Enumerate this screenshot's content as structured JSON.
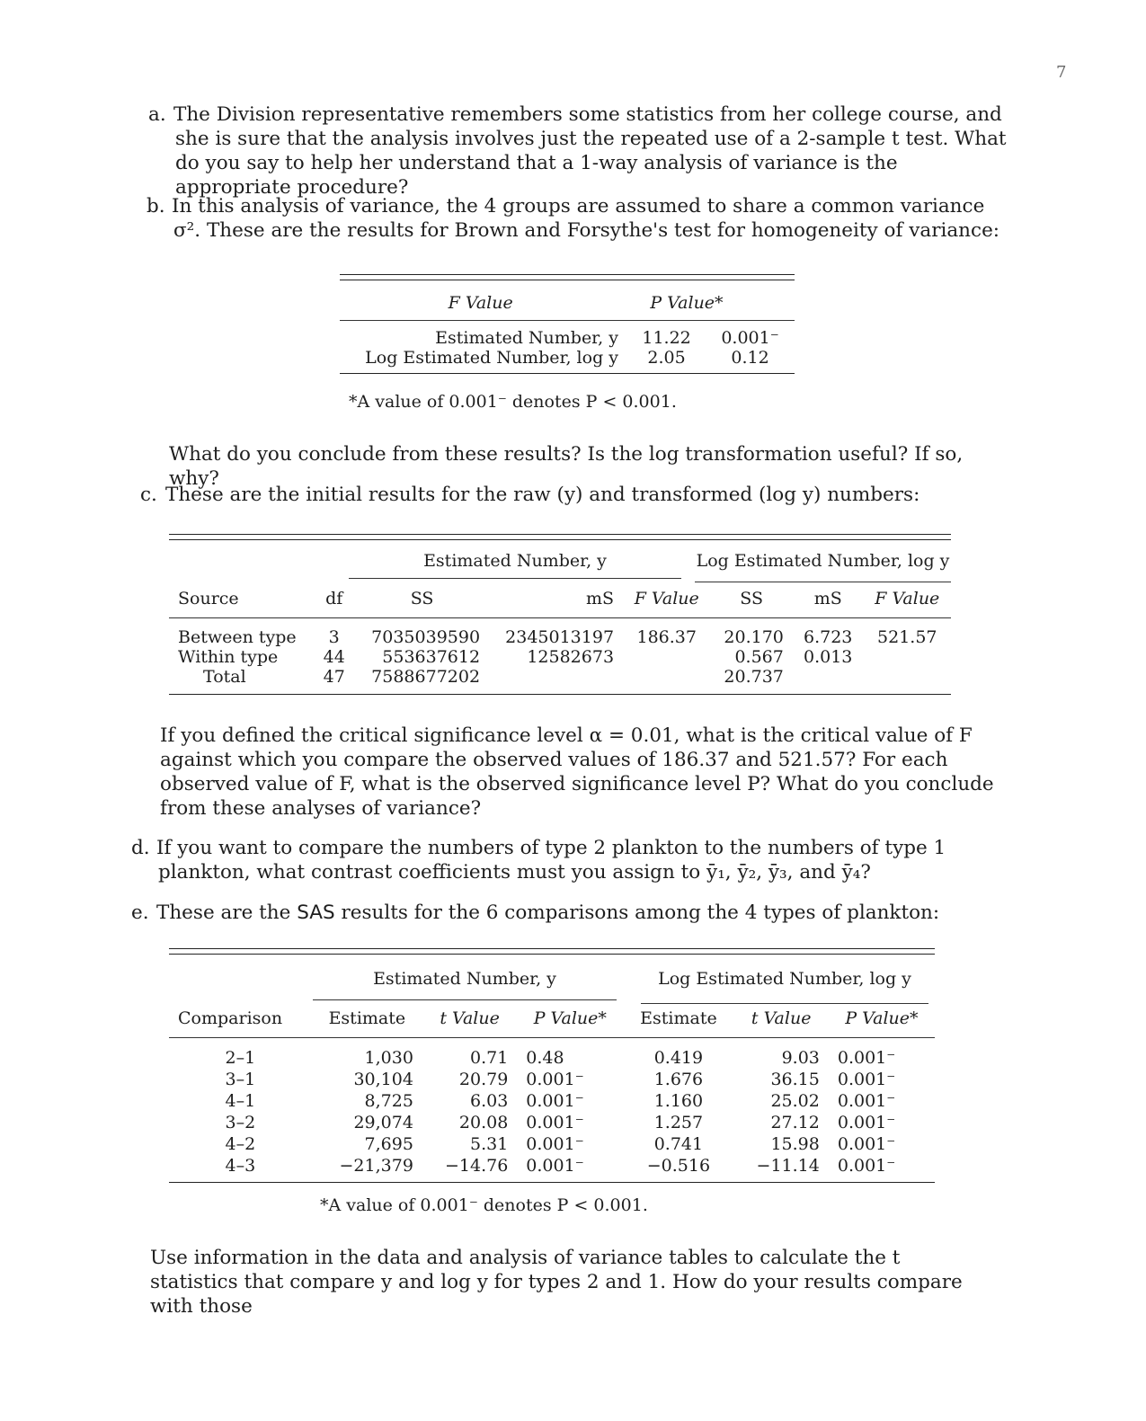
{
  "page_number": "7",
  "items": {
    "a": {
      "label": "a.",
      "text": "The Division representative remembers some statistics from her college course, and she is sure that the analysis involves just the repeated use of a 2-sample t test. What do you say to help her understand that a 1-way analysis of variance is the appropriate procedure?"
    },
    "b": {
      "label": "b.",
      "text": "In this analysis of variance, the 4 groups are assumed to share a common variance σ². These are the results for Brown and Forsythe's test for homogeneity of variance:"
    },
    "b_followup": "What do you conclude from these results? Is the log transformation useful? If so, why?",
    "c": {
      "label": "c.",
      "text": "These are the initial results for the raw (y) and transformed (log y) numbers:"
    },
    "c_followup": "If you defined the critical significance level α = 0.01, what is the critical value of F against which you compare the observed values of 186.37 and 521.57? For each observed value of F, what is the observed significance level P? What do you conclude from these analyses of variance?",
    "d": {
      "label": "d.",
      "text": "If you want to compare the numbers of type 2 plankton to the numbers of type 1 plankton, what contrast coefficients must you assign to ȳ₁, ȳ₂, ȳ₃, and ȳ₄?"
    },
    "e": {
      "label": "e.",
      "text_before": "These are the ",
      "sas": "SAS",
      "text_after": " results for the 6 comparisons among the 4 types of plankton:"
    },
    "e_followup": "Use information in the data and analysis of variance tables to calculate the t statistics that compare y and log y for types 2 and 1. How do your results compare with those"
  },
  "table_bf": {
    "headers": [
      "",
      "F Value",
      "P Value*"
    ],
    "rows": [
      [
        "Estimated Number, y",
        "11.22",
        "0.001⁻"
      ],
      [
        "Log Estimated Number, log y",
        "2.05",
        "0.12"
      ]
    ],
    "footnote": "*A value of 0.001⁻ denotes P < 0.001."
  },
  "table_anova": {
    "group_headers": [
      "Estimated Number, y",
      "Log Estimated Number, log y"
    ],
    "headers": [
      "Source",
      "df",
      "SS",
      "mS",
      "F Value",
      "SS",
      "mS",
      "F Value"
    ],
    "rows": [
      [
        "Between type",
        "3",
        "7035039590",
        "2345013197",
        "186.37",
        "20.170",
        "6.723",
        "521.57"
      ],
      [
        "Within type",
        "44",
        "553637612",
        "12582673",
        "",
        "0.567",
        "0.013",
        ""
      ],
      [
        "Total",
        "47",
        "7588677202",
        "",
        "",
        "20.737",
        "",
        ""
      ]
    ]
  },
  "table_comp": {
    "group_headers": [
      "Estimated Number, y",
      "Log Estimated Number, log y"
    ],
    "headers": [
      "Comparison",
      "Estimate",
      "t Value",
      "P Value*",
      "Estimate",
      "t Value",
      "P Value*"
    ],
    "rows": [
      [
        "2–1",
        "1,030",
        "0.71",
        "0.48",
        "0.419",
        "9.03",
        "0.001⁻"
      ],
      [
        "3–1",
        "30,104",
        "20.79",
        "0.001⁻",
        "1.676",
        "36.15",
        "0.001⁻"
      ],
      [
        "4–1",
        "8,725",
        "6.03",
        "0.001⁻",
        "1.160",
        "25.02",
        "0.001⁻"
      ],
      [
        "3–2",
        "29,074",
        "20.08",
        "0.001⁻",
        "1.257",
        "27.12",
        "0.001⁻"
      ],
      [
        "4–2",
        "7,695",
        "5.31",
        "0.001⁻",
        "0.741",
        "15.98",
        "0.001⁻"
      ],
      [
        "4–3",
        "−21,379",
        "−14.76",
        "0.001⁻",
        "−0.516",
        "−11.14",
        "0.001⁻"
      ]
    ],
    "footnote": "*A value of 0.001⁻ denotes P < 0.001."
  }
}
